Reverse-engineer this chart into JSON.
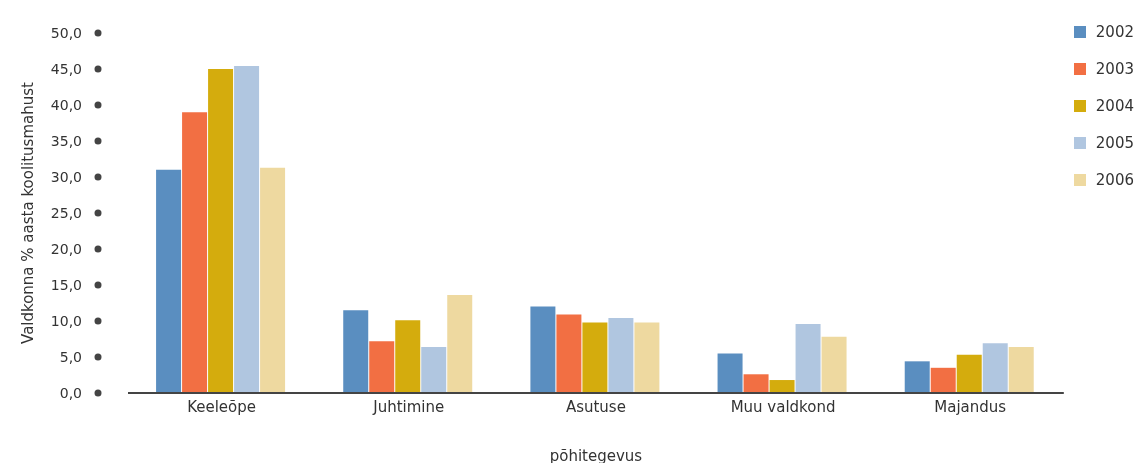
{
  "chart_data": {
    "type": "bar",
    "xlabel": "põhitegevus",
    "ylabel": "Valdkonna % aasta koolitusmahust",
    "categories": [
      "Keeleõpe",
      "Juhtimine",
      "Asutuse",
      "Muu valdkond",
      "Majandus"
    ],
    "series": [
      {
        "name": "2002",
        "color": "#5a8ec0",
        "values": [
          31.0,
          11.5,
          12.0,
          5.5,
          4.4
        ]
      },
      {
        "name": "2003",
        "color": "#f26f43",
        "values": [
          39.0,
          7.2,
          10.9,
          2.6,
          3.5
        ]
      },
      {
        "name": "2004",
        "color": "#d4ac0d",
        "values": [
          45.0,
          10.1,
          9.8,
          1.8,
          5.3
        ]
      },
      {
        "name": "2005",
        "color": "#b0c6e0",
        "values": [
          45.4,
          6.4,
          10.4,
          9.6,
          6.9
        ]
      },
      {
        "name": "2006",
        "color": "#eed9a0",
        "values": [
          31.3,
          13.6,
          9.8,
          7.8,
          6.4
        ]
      }
    ],
    "ylim": [
      0,
      50
    ],
    "yticks": [
      {
        "value": 0,
        "label": "0,0"
      },
      {
        "value": 5,
        "label": "5,0"
      },
      {
        "value": 10,
        "label": "10,0"
      },
      {
        "value": 15,
        "label": "15,0"
      },
      {
        "value": 20,
        "label": "20,0"
      },
      {
        "value": 25,
        "label": "25,0"
      },
      {
        "value": 30,
        "label": "30,0"
      },
      {
        "value": 35,
        "label": "35,0"
      },
      {
        "value": 40,
        "label": "40,0"
      },
      {
        "value": 45,
        "label": "45,0"
      },
      {
        "value": 50,
        "label": "50,0"
      }
    ],
    "grid": false,
    "legend": "top right"
  }
}
